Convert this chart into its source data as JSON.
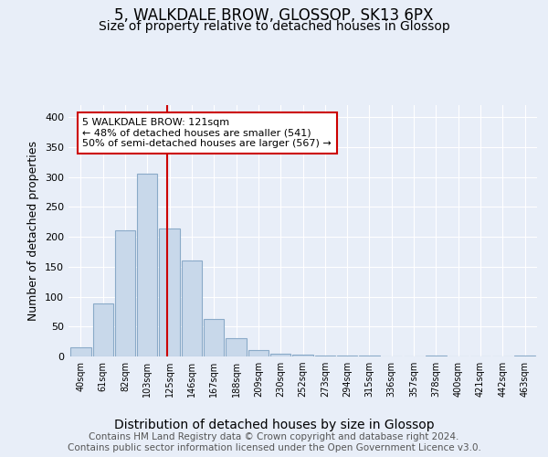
{
  "title1": "5, WALKDALE BROW, GLOSSOP, SK13 6PX",
  "title2": "Size of property relative to detached houses in Glossop",
  "xlabel": "Distribution of detached houses by size in Glossop",
  "ylabel": "Number of detached properties",
  "categories": [
    "40sqm",
    "61sqm",
    "82sqm",
    "103sqm",
    "125sqm",
    "146sqm",
    "167sqm",
    "188sqm",
    "209sqm",
    "230sqm",
    "252sqm",
    "273sqm",
    "294sqm",
    "315sqm",
    "336sqm",
    "357sqm",
    "378sqm",
    "400sqm",
    "421sqm",
    "442sqm",
    "463sqm"
  ],
  "values": [
    15,
    88,
    211,
    305,
    214,
    160,
    63,
    30,
    10,
    5,
    3,
    2,
    2,
    1,
    0,
    0,
    2,
    0,
    0,
    0,
    2
  ],
  "bar_color": "#c8d8ea",
  "bar_edge_color": "#8aaac8",
  "vline_x": 3.9,
  "vline_color": "#cc0000",
  "annotation_text": "5 WALKDALE BROW: 121sqm\n← 48% of detached houses are smaller (541)\n50% of semi-detached houses are larger (567) →",
  "annotation_box_color": "#ffffff",
  "annotation_box_edge_color": "#cc0000",
  "ylim": [
    0,
    420
  ],
  "yticks": [
    0,
    50,
    100,
    150,
    200,
    250,
    300,
    350,
    400
  ],
  "background_color": "#e8eef8",
  "plot_bg_color": "#e8eef8",
  "footer_text": "Contains HM Land Registry data © Crown copyright and database right 2024.\nContains public sector information licensed under the Open Government Licence v3.0.",
  "title1_fontsize": 12,
  "title2_fontsize": 10,
  "xlabel_fontsize": 10,
  "ylabel_fontsize": 9,
  "footer_fontsize": 7.5
}
